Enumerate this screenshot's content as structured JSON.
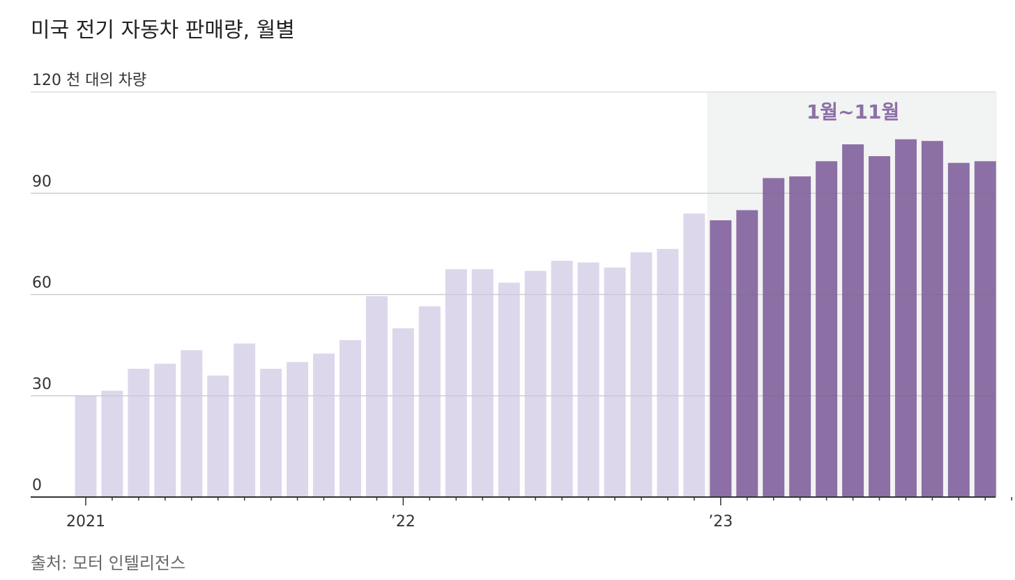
{
  "title": "미국 전기 자동차 판매량, 월별",
  "source": "출처: 모터 인텔리전스",
  "colors": {
    "past": "#ddd7ec",
    "highlight": "#8c70a5",
    "shade": "#f2f3f3",
    "grid": "#dddddd",
    "axis": "#333333",
    "highlight_text": "#8c70a5"
  },
  "chart_data": {
    "type": "bar",
    "title": "미국 전기 자동차 판매량, 월별",
    "ylabel": "천 대의 차량",
    "ylim": [
      0,
      120
    ],
    "yticks": [
      0,
      30,
      60,
      90,
      120
    ],
    "ytick_labels": [
      "0",
      "30",
      "60",
      "90",
      "120 천 대의 차량"
    ],
    "xtick_labels": [
      {
        "label": "2021",
        "index": 0
      },
      {
        "label": "’22",
        "index": 12
      },
      {
        "label": "’23",
        "index": 24
      }
    ],
    "highlight": {
      "label": "1월~11월",
      "from_index": 24,
      "to_index": 34
    },
    "categories": [
      "2021-01",
      "2021-02",
      "2021-03",
      "2021-04",
      "2021-05",
      "2021-06",
      "2021-07",
      "2021-08",
      "2021-09",
      "2021-10",
      "2021-11",
      "2021-12",
      "2022-01",
      "2022-02",
      "2022-03",
      "2022-04",
      "2022-05",
      "2022-06",
      "2022-07",
      "2022-08",
      "2022-09",
      "2022-10",
      "2022-11",
      "2022-12",
      "2023-01",
      "2023-02",
      "2023-03",
      "2023-04",
      "2023-05",
      "2023-06",
      "2023-07",
      "2023-08",
      "2023-09",
      "2023-10",
      "2023-11"
    ],
    "values": [
      30,
      31.5,
      38,
      39.5,
      43.5,
      36,
      45.5,
      38,
      40,
      42.5,
      46.5,
      59.5,
      50,
      56.5,
      67.5,
      67.5,
      63.5,
      67,
      70,
      69.5,
      68,
      72.5,
      73.5,
      84,
      82,
      85,
      94.5,
      95,
      99.5,
      104.5,
      101,
      106,
      105.5,
      99,
      99.5
    ]
  }
}
